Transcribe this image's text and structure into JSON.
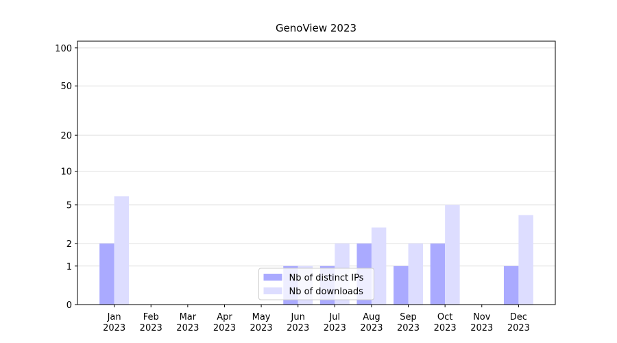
{
  "chart_data": {
    "type": "bar",
    "title": "GenoView 2023",
    "categories": [
      "Jan\n2023",
      "Feb\n2023",
      "Mar\n2023",
      "Apr\n2023",
      "May\n2023",
      "Jun\n2023",
      "Jul\n2023",
      "Aug\n2023",
      "Sep\n2023",
      "Oct\n2023",
      "Nov\n2023",
      "Dec\n2023"
    ],
    "series": [
      {
        "name": "Nb of distinct IPs",
        "color": "#aaaaff",
        "values": [
          2,
          0,
          0,
          0,
          0,
          1,
          1,
          2,
          1,
          2,
          0,
          1
        ]
      },
      {
        "name": "Nb of downloads",
        "color": "#ddddff",
        "values": [
          6,
          0,
          0,
          0,
          0,
          1,
          2,
          3,
          2,
          5,
          0,
          4
        ]
      }
    ],
    "yscale": "log1p",
    "ylim": [
      0,
      113
    ],
    "yticks": [
      0,
      1,
      2,
      5,
      10,
      20,
      50,
      100
    ],
    "grid": true,
    "legend": "lower center"
  }
}
